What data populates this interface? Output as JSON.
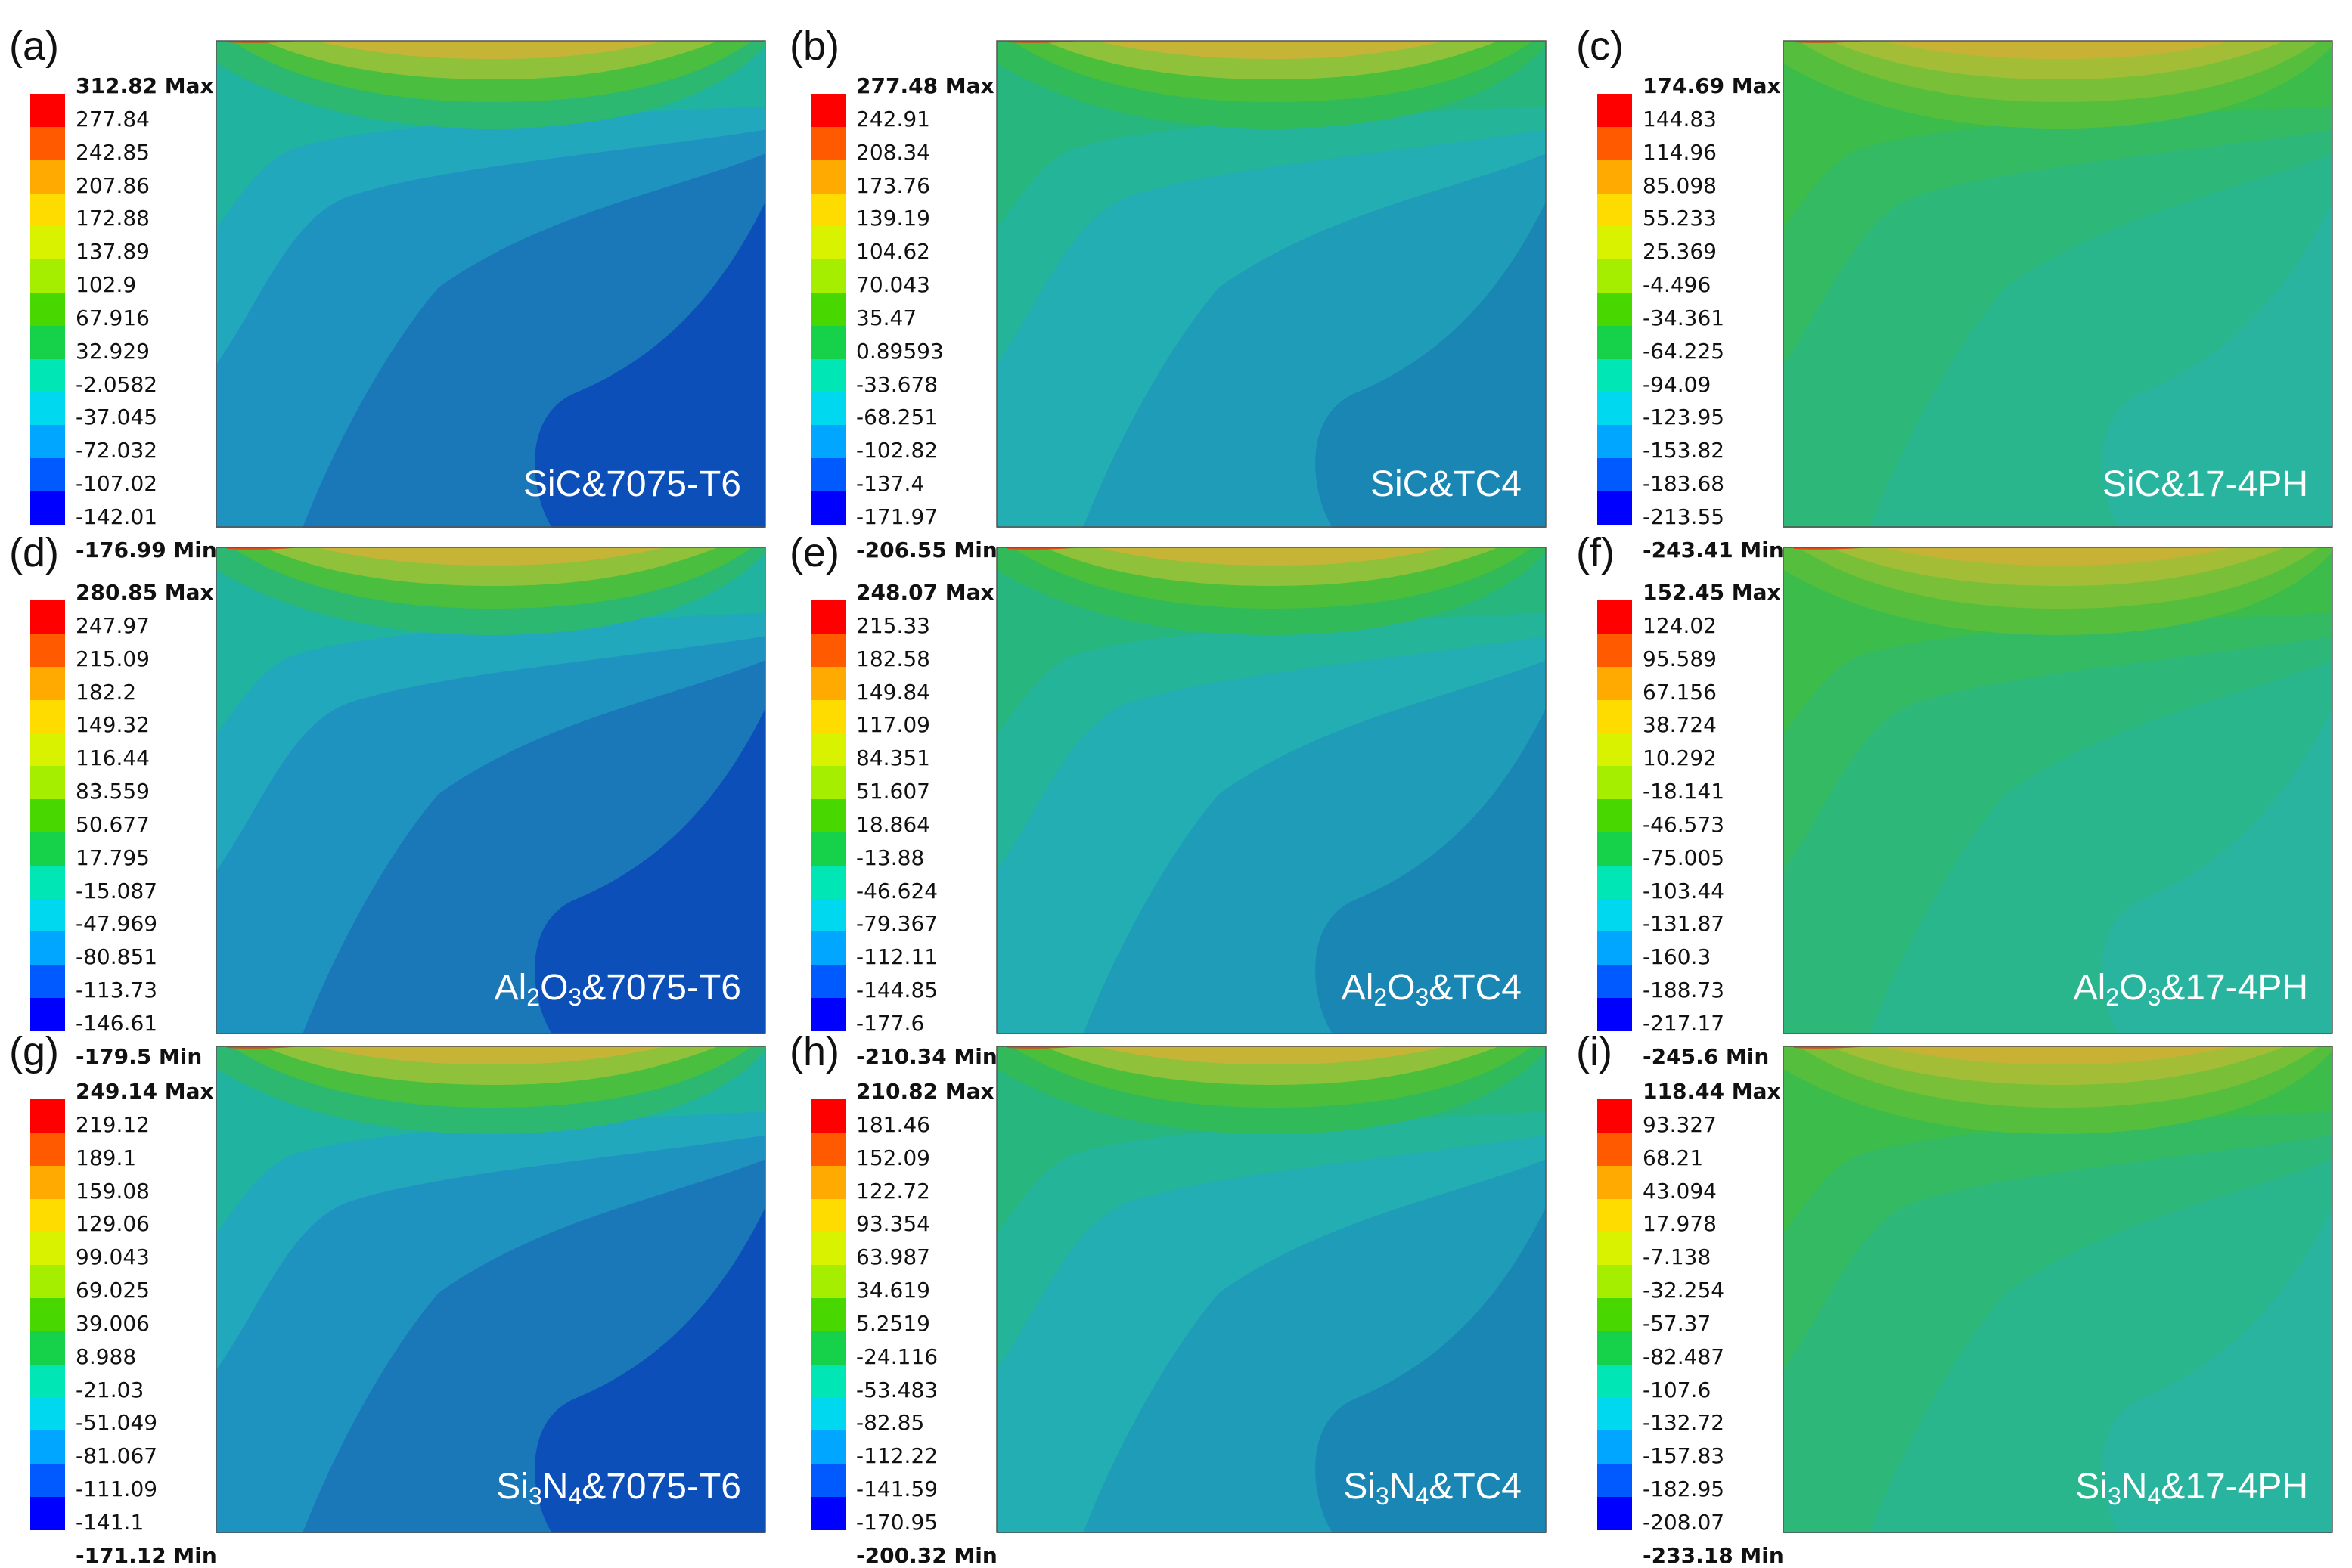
{
  "colors": [
    "#ff0000",
    "#ff5a00",
    "#ffaa00",
    "#ffdc00",
    "#d8f200",
    "#a6ee00",
    "#48d800",
    "#15d24a",
    "#00e6b4",
    "#00d8f0",
    "#00a6ff",
    "#005aff",
    "#0000ff"
  ],
  "panels": [
    {
      "label": "(a)",
      "material": "SiC",
      "alloy": "7075-T6",
      "sub": "",
      "max": "312.82",
      "min": "-176.99",
      "mid": [
        "277.84",
        "242.85",
        "207.86",
        "172.88",
        "137.89",
        "102.9",
        "67.916",
        "32.929",
        "-2.0582",
        "-37.045",
        "-72.032",
        "-107.02",
        "-142.01"
      ]
    },
    {
      "label": "(b)",
      "material": "SiC",
      "alloy": "TC4",
      "sub": "",
      "max": "277.48",
      "min": "-206.55",
      "mid": [
        "242.91",
        "208.34",
        "173.76",
        "139.19",
        "104.62",
        "70.043",
        "35.47",
        "0.89593",
        "-33.678",
        "-68.251",
        "-102.82",
        "-137.4",
        "-171.97"
      ]
    },
    {
      "label": "(c)",
      "material": "SiC",
      "alloy": "17-4PH",
      "sub": "",
      "max": "174.69",
      "min": "-243.41",
      "mid": [
        "144.83",
        "114.96",
        "85.098",
        "55.233",
        "25.369",
        "-4.496",
        "-34.361",
        "-64.225",
        "-94.09",
        "-123.95",
        "-153.82",
        "-183.68",
        "-213.55"
      ]
    },
    {
      "label": "(d)",
      "material": "Al",
      "alloy": "7075-T6",
      "sub": "2|3",
      "tail": "O",
      "max": "280.85",
      "min": "-179.5",
      "mid": [
        "247.97",
        "215.09",
        "182.2",
        "149.32",
        "116.44",
        "83.559",
        "50.677",
        "17.795",
        "-15.087",
        "-47.969",
        "-80.851",
        "-113.73",
        "-146.61"
      ]
    },
    {
      "label": "(e)",
      "material": "Al",
      "alloy": "TC4",
      "sub": "2|3",
      "tail": "O",
      "max": "248.07",
      "min": "-210.34",
      "mid": [
        "215.33",
        "182.58",
        "149.84",
        "117.09",
        "84.351",
        "51.607",
        "18.864",
        "-13.88",
        "-46.624",
        "-79.367",
        "-112.11",
        "-144.85",
        "-177.6"
      ]
    },
    {
      "label": "(f)",
      "material": "Al",
      "alloy": "17-4PH",
      "sub": "2|3",
      "tail": "O",
      "max": "152.45",
      "min": "-245.6",
      "mid": [
        "124.02",
        "95.589",
        "67.156",
        "38.724",
        "10.292",
        "-18.141",
        "-46.573",
        "-75.005",
        "-103.44",
        "-131.87",
        "-160.3",
        "-188.73",
        "-217.17"
      ]
    },
    {
      "label": "(g)",
      "material": "Si",
      "alloy": "7075-T6",
      "sub": "3|4",
      "tail": "N",
      "max": "249.14",
      "min": "-171.12",
      "mid": [
        "219.12",
        "189.1",
        "159.08",
        "129.06",
        "99.043",
        "69.025",
        "39.006",
        "8.988",
        "-21.03",
        "-51.049",
        "-81.067",
        "-111.09",
        "-141.1"
      ]
    },
    {
      "label": "(h)",
      "material": "Si",
      "alloy": "TC4",
      "sub": "3|4",
      "tail": "N",
      "max": "210.82",
      "min": "-200.32",
      "mid": [
        "181.46",
        "152.09",
        "122.72",
        "93.354",
        "63.987",
        "34.619",
        "5.2519",
        "-24.116",
        "-53.483",
        "-82.85",
        "-112.22",
        "-141.59",
        "-170.95"
      ]
    },
    {
      "label": "(i)",
      "material": "Si",
      "alloy": "17-4PH",
      "sub": "3|4",
      "tail": "N",
      "max": "118.44",
      "min": "-233.18",
      "mid": [
        "93.327",
        "68.21",
        "43.094",
        "17.978",
        "-7.138",
        "-32.254",
        "-57.37",
        "-82.487",
        "-107.6",
        "-132.72",
        "-157.83",
        "-182.95",
        "-208.07"
      ]
    }
  ],
  "captions": [
    "SiC&7075-T6",
    "SiC&TC4",
    "SiC&17-4PH",
    "Al2O3&7075-T6",
    "Al2O3&TC4",
    "Al2O3&17-4PH",
    "Si3N4&7075-T6",
    "Si3N4&TC4",
    "Si3N4&17-4PH"
  ],
  "max_suffix": "Max",
  "min_suffix": "Min"
}
